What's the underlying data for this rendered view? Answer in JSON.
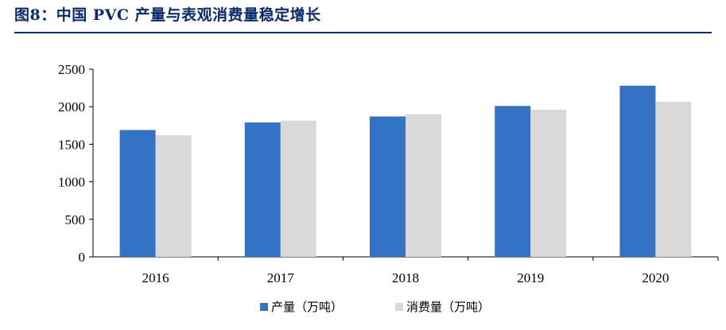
{
  "title": "图8：中国 PVC 产量与表观消费量稳定增长",
  "colors": {
    "title": "#0b2a6b",
    "series_production": "#3372c4",
    "series_consumption": "#d9d9d9",
    "axis": "#000000"
  },
  "chart_data": {
    "type": "bar",
    "categories": [
      "2016",
      "2017",
      "2018",
      "2019",
      "2020"
    ],
    "series": [
      {
        "name": "产量（万吨）",
        "values": [
          1690,
          1790,
          1870,
          2010,
          2280
        ]
      },
      {
        "name": "消费量（万吨）",
        "values": [
          1620,
          1815,
          1900,
          1960,
          2065
        ]
      }
    ],
    "ylim": [
      0,
      2500
    ],
    "yticks": [
      "0",
      "500",
      "1000",
      "1500",
      "2000",
      "2500"
    ],
    "grid": false,
    "legend": "bottom-center"
  }
}
